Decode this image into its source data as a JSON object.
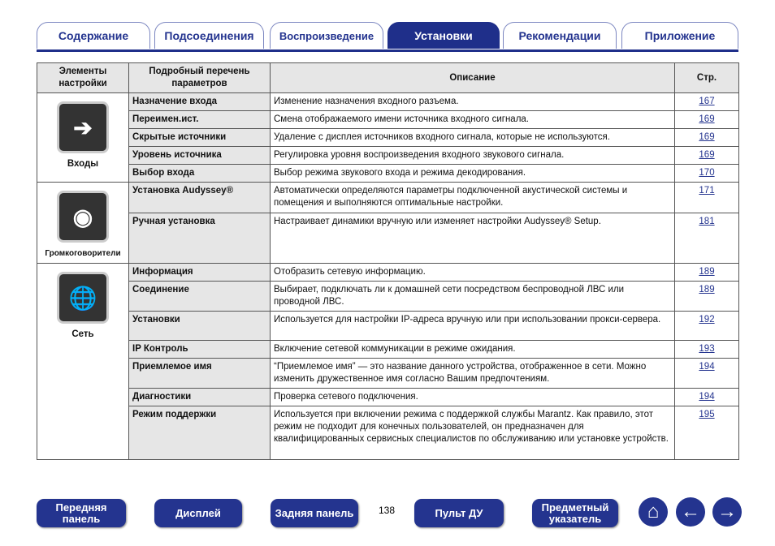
{
  "tabs": [
    {
      "label": "Содержание"
    },
    {
      "label": "Подсоединения"
    },
    {
      "label": "Воспроизведение"
    },
    {
      "label": "Установки",
      "active": true
    },
    {
      "label": "Рекомендации"
    },
    {
      "label": "Приложение"
    }
  ],
  "table": {
    "headers": [
      "Элементы настройки",
      "Подробный перечень параметров",
      "Описание",
      "Стр."
    ],
    "groups": [
      {
        "item": "Входы",
        "icon": "input-arrow-icon",
        "rows": [
          {
            "param": "Назначение входа",
            "desc": "Изменение назначения входного разъема.",
            "page": "167"
          },
          {
            "param": "Переимен.ист.",
            "desc": "Смена отображаемого имени источника входного сигнала.",
            "page": "169"
          },
          {
            "param": "Скрытые источники",
            "desc": "Удаление с дисплея источников входного сигнала, которые не используются.",
            "page": "169"
          },
          {
            "param": "Уровень источника",
            "desc": "Регулировка уровня воспроизведения входного звукового сигнала.",
            "page": "169"
          },
          {
            "param": "Выбор входа",
            "desc": "Выбор режима звукового входа и режима декодирования.",
            "page": "170"
          }
        ]
      },
      {
        "item": "Громкоговорители",
        "icon": "speaker-icon",
        "rows": [
          {
            "param": "Установка Audyssey®",
            "desc": "Автоматически определяются параметры подключенной акустической системы и помещения и выполняются оптимальные настройки.",
            "page": "171"
          },
          {
            "param": "Ручная установка",
            "desc": "Настраивает динамики вручную или изменяет настройки Audyssey® Setup.",
            "page": "181"
          }
        ]
      },
      {
        "item": "Сеть",
        "icon": "globe-network-icon",
        "rows": [
          {
            "param": "Информация",
            "desc": "Отобразить сетевую информацию.",
            "page": "189"
          },
          {
            "param": "Соединение",
            "desc": "Выбирает, подключать ли к домашней сети посредством беспроводной ЛВС или проводной ЛВС.",
            "page": "189"
          },
          {
            "param": "Установки",
            "desc": "Используется для настройки IP-адреса вручную или при использовании прокси-сервера.",
            "page": "192"
          },
          {
            "param": "IP Контроль",
            "desc": "Включение сетевой коммуникации в режиме ожидания.",
            "page": "193"
          },
          {
            "param": "Приемлемое имя",
            "desc": "“Приемлемое имя” — это название данного устройства, отображенное в сети. Можно изменить дружественное имя согласно Вашим предпочтениям.",
            "page": "194"
          },
          {
            "param": "Диагностики",
            "desc": "Проверка сетевого подключения.",
            "page": "194"
          },
          {
            "param": "Режим поддержки",
            "desc": "Используется при включении режима с поддержкой службы Marantz. Как правило, этот режим не подходит для конечных пользователей, он предназначен для квалифицированных сервисных специалистов по обслуживанию или установке устройств.",
            "page": "195"
          }
        ]
      }
    ]
  },
  "footer": {
    "buttons": [
      "Передняя панель",
      "Дисплей",
      "Задняя панель",
      "Пульт ДУ",
      "Предметный указатель"
    ],
    "page_number": "138",
    "icons": [
      "home-icon",
      "back-arrow-icon",
      "forward-arrow-icon"
    ]
  },
  "colors": {
    "accent": "#24348f",
    "header_bg": "#e6e6e6"
  }
}
